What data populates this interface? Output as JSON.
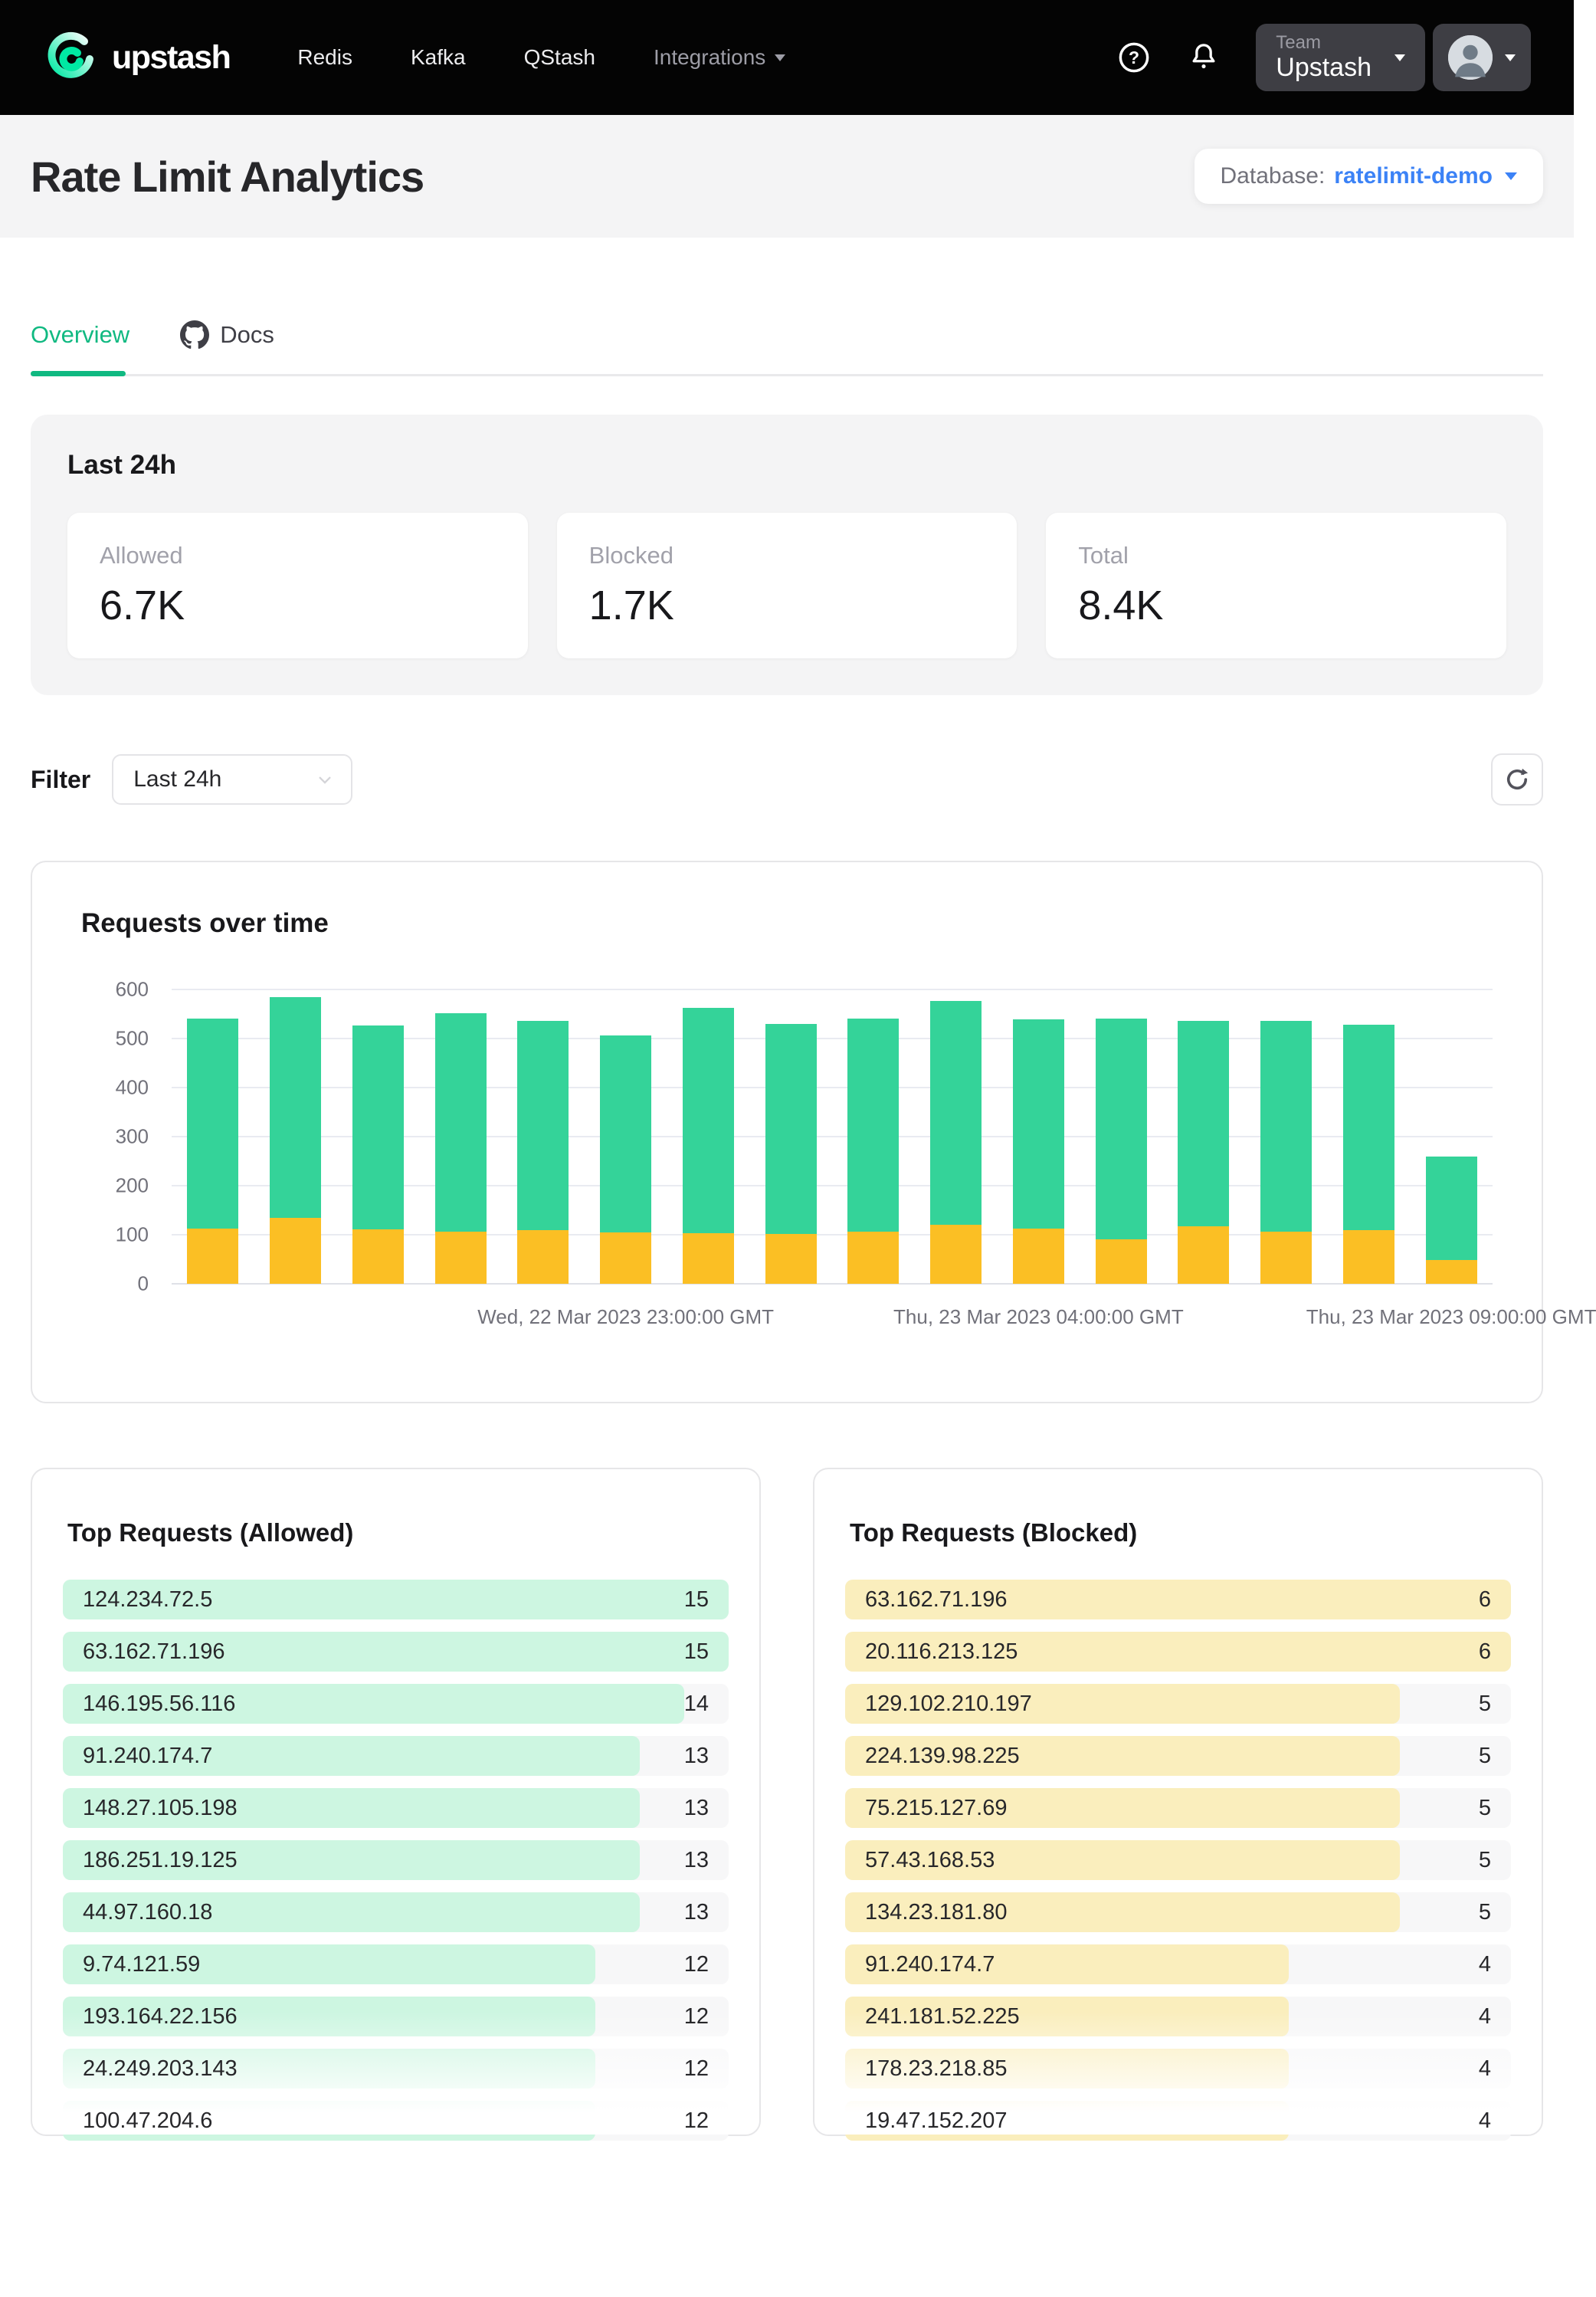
{
  "navbar": {
    "brand": "upstash",
    "links": [
      {
        "label": "Redis"
      },
      {
        "label": "Kafka"
      },
      {
        "label": "QStash"
      },
      {
        "label": "Integrations"
      }
    ],
    "team": {
      "label": "Team",
      "name": "Upstash"
    }
  },
  "header": {
    "title": "Rate Limit Analytics",
    "database_label": "Database:",
    "database_value": "ratelimit-demo"
  },
  "tabs": {
    "overview": "Overview",
    "docs": "Docs"
  },
  "stats": {
    "heading": "Last 24h",
    "cards": [
      {
        "label": "Allowed",
        "value": "6.7K"
      },
      {
        "label": "Blocked",
        "value": "1.7K"
      },
      {
        "label": "Total",
        "value": "8.4K"
      }
    ]
  },
  "filter": {
    "label": "Filter",
    "value": "Last 24h"
  },
  "chart_data": {
    "type": "bar",
    "stacked": true,
    "title": "Requests over time",
    "ylim": [
      0,
      600
    ],
    "yticks": [
      0,
      100,
      200,
      300,
      400,
      500,
      600
    ],
    "grid": true,
    "series": [
      {
        "name": "Allowed",
        "color": "#34d399",
        "values": [
          428,
          450,
          416,
          444,
          426,
          403,
          460,
          428,
          434,
          457,
          426,
          450,
          419,
          430,
          419,
          212
        ]
      },
      {
        "name": "Blocked",
        "color": "#fbbf24",
        "values": [
          112,
          135,
          111,
          107,
          110,
          104,
          103,
          101,
          107,
          120,
          113,
          90,
          117,
          106,
          109,
          48
        ]
      }
    ],
    "x_tick_labels": [
      {
        "index": 5,
        "label": "Wed, 22 Mar 2023 23:00:00 GMT"
      },
      {
        "index": 10,
        "label": "Thu, 23 Mar 2023 04:00:00 GMT"
      },
      {
        "index": 15,
        "label": "Thu, 23 Mar 2023 09:00:00 GMT"
      }
    ]
  },
  "tables": {
    "allowed": {
      "title": "Top Requests (Allowed)",
      "max": 15,
      "bar_color": "#cdf6e1",
      "rows": [
        {
          "ip": "124.234.72.5",
          "value": 15
        },
        {
          "ip": "63.162.71.196",
          "value": 15
        },
        {
          "ip": "146.195.56.116",
          "value": 14
        },
        {
          "ip": "91.240.174.7",
          "value": 13
        },
        {
          "ip": "148.27.105.198",
          "value": 13
        },
        {
          "ip": "186.251.19.125",
          "value": 13
        },
        {
          "ip": "44.97.160.18",
          "value": 13
        },
        {
          "ip": "9.74.121.59",
          "value": 12
        },
        {
          "ip": "193.164.22.156",
          "value": 12
        },
        {
          "ip": "24.249.203.143",
          "value": 12
        },
        {
          "ip": "100.47.204.6",
          "value": 12
        }
      ]
    },
    "blocked": {
      "title": "Top Requests (Blocked)",
      "max": 6,
      "bar_color": "#faeebd",
      "rows": [
        {
          "ip": "63.162.71.196",
          "value": 6
        },
        {
          "ip": "20.116.213.125",
          "value": 6
        },
        {
          "ip": "129.102.210.197",
          "value": 5
        },
        {
          "ip": "224.139.98.225",
          "value": 5
        },
        {
          "ip": "75.215.127.69",
          "value": 5
        },
        {
          "ip": "57.43.168.53",
          "value": 5
        },
        {
          "ip": "134.23.181.80",
          "value": 5
        },
        {
          "ip": "91.240.174.7",
          "value": 4
        },
        {
          "ip": "241.181.52.225",
          "value": 4
        },
        {
          "ip": "178.23.218.85",
          "value": 4
        },
        {
          "ip": "19.47.152.207",
          "value": 4
        }
      ]
    }
  },
  "colors": {
    "brand_green": "#00e9a3",
    "tab_active": "#10b981",
    "chart_allowed": "#34d399",
    "chart_blocked": "#fbbf24",
    "link_blue": "#3b82f6"
  }
}
